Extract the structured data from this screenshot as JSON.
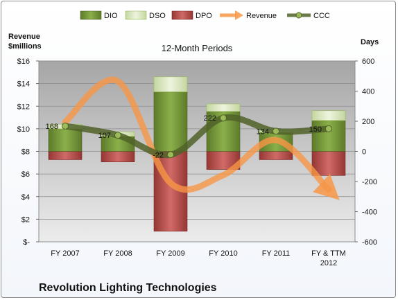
{
  "chart_data": {
    "type": "bar",
    "title": "12-Month Periods",
    "company": "Revolution Lighting Technologies",
    "ylabel_left": "Revenue $millions",
    "ylabel_left_lines": [
      "Revenue",
      "$millions"
    ],
    "ylabel_right": "Days",
    "left_axis": {
      "range": [
        0,
        16
      ],
      "ticks": [
        "$-",
        "$2",
        "$4",
        "$6",
        "$8",
        "$10",
        "$12",
        "$14",
        "$16"
      ]
    },
    "right_axis": {
      "range": [
        -600,
        600
      ],
      "ticks": [
        "-600",
        "-400",
        "-200",
        "0",
        "200",
        "400",
        "600"
      ]
    },
    "categories": [
      "FY 2007",
      "FY 2008",
      "FY 2009",
      "FY 2010",
      "FY 2011",
      "FY & TTM 2012"
    ],
    "category_lines": [
      [
        "FY 2007"
      ],
      [
        "FY 2008"
      ],
      [
        "FY 2009"
      ],
      [
        "FY 2010"
      ],
      [
        "FY 2011"
      ],
      [
        "FY & TTM",
        "2012"
      ]
    ],
    "series": [
      {
        "name": "DIO",
        "axis": "right",
        "type": "stacked-bar",
        "color": "#76923c",
        "values": [
          150,
          100,
          395,
          265,
          125,
          205
        ]
      },
      {
        "name": "DSO",
        "axis": "right",
        "type": "stacked-bar",
        "color": "#d7e4bd",
        "values": [
          30,
          30,
          100,
          50,
          15,
          65
        ]
      },
      {
        "name": "DPO",
        "axis": "right",
        "type": "stacked-bar",
        "color": "#c0504d",
        "values": [
          -55,
          -70,
          -530,
          -120,
          -55,
          -160
        ]
      },
      {
        "name": "Revenue",
        "axis": "left",
        "type": "line",
        "color": "#f79646",
        "values": [
          10.6,
          14.2,
          5.2,
          5.9,
          9.0,
          4.6
        ]
      },
      {
        "name": "CCC",
        "axis": "right",
        "type": "line",
        "color": "#4f6228",
        "values": [
          168,
          107,
          -22,
          222,
          134,
          150
        ],
        "labels": [
          "168",
          "107",
          "-22",
          "222",
          "134",
          "150"
        ]
      }
    ],
    "legend_position": "top",
    "grid": true
  }
}
